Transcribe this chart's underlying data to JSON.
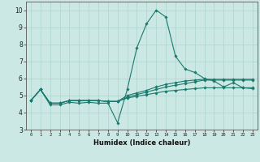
{
  "title": "",
  "xlabel": "Humidex (Indice chaleur)",
  "ylabel": "",
  "bg_color": "#cce8e4",
  "line_color": "#1a7a6e",
  "grid_color": "#aad4cc",
  "xlim": [
    -0.5,
    23.5
  ],
  "ylim": [
    3,
    10.5
  ],
  "xticks": [
    0,
    1,
    2,
    3,
    4,
    5,
    6,
    7,
    8,
    9,
    10,
    11,
    12,
    13,
    14,
    15,
    16,
    17,
    18,
    19,
    20,
    21,
    22,
    23
  ],
  "yticks": [
    3,
    4,
    5,
    6,
    7,
    8,
    9,
    10
  ],
  "series": [
    {
      "x": [
        0,
        1,
        2,
        3,
        4,
        5,
        6,
        7,
        8,
        9,
        10,
        11,
        12,
        13,
        14,
        15,
        16,
        17,
        18,
        19,
        20,
        21,
        22,
        23
      ],
      "y": [
        4.7,
        5.35,
        4.45,
        4.45,
        4.6,
        4.55,
        4.6,
        4.55,
        4.55,
        3.4,
        5.35,
        7.8,
        9.2,
        10.0,
        9.6,
        7.3,
        6.55,
        6.35,
        6.0,
        5.85,
        5.5,
        5.75,
        5.45,
        5.4
      ]
    },
    {
      "x": [
        0,
        1,
        2,
        3,
        4,
        5,
        6,
        7,
        8,
        9,
        10,
        11,
        12,
        13,
        14,
        15,
        16,
        17,
        18,
        19,
        20,
        21,
        22,
        23
      ],
      "y": [
        4.7,
        5.35,
        4.55,
        4.55,
        4.7,
        4.7,
        4.7,
        4.7,
        4.65,
        4.65,
        4.85,
        4.95,
        5.05,
        5.15,
        5.25,
        5.3,
        5.35,
        5.4,
        5.45,
        5.45,
        5.45,
        5.45,
        5.45,
        5.45
      ]
    },
    {
      "x": [
        0,
        1,
        2,
        3,
        4,
        5,
        6,
        7,
        8,
        9,
        10,
        11,
        12,
        13,
        14,
        15,
        16,
        17,
        18,
        19,
        20,
        21,
        22,
        23
      ],
      "y": [
        4.7,
        5.35,
        4.55,
        4.55,
        4.7,
        4.7,
        4.7,
        4.7,
        4.65,
        4.65,
        4.9,
        5.05,
        5.2,
        5.35,
        5.5,
        5.6,
        5.7,
        5.8,
        5.9,
        5.9,
        5.9,
        5.9,
        5.9,
        5.9
      ]
    },
    {
      "x": [
        0,
        1,
        2,
        3,
        4,
        5,
        6,
        7,
        8,
        9,
        10,
        11,
        12,
        13,
        14,
        15,
        16,
        17,
        18,
        19,
        20,
        21,
        22,
        23
      ],
      "y": [
        4.7,
        5.35,
        4.55,
        4.55,
        4.7,
        4.7,
        4.7,
        4.7,
        4.65,
        4.65,
        5.0,
        5.15,
        5.3,
        5.5,
        5.65,
        5.75,
        5.85,
        5.9,
        5.95,
        5.95,
        5.95,
        5.95,
        5.95,
        5.95
      ]
    }
  ]
}
